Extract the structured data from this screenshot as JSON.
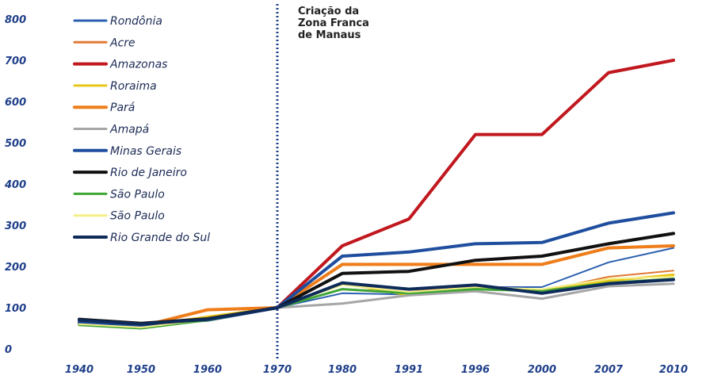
{
  "chart_data": {
    "type": "line",
    "x": [
      "1940",
      "1950",
      "1960",
      "1970",
      "1980",
      "1991",
      "1996",
      "2000",
      "2007",
      "2010"
    ],
    "ylim": [
      0,
      800
    ],
    "yticks": [
      "0",
      "100",
      "200",
      "300",
      "400",
      "500",
      "600",
      "700",
      "800"
    ],
    "grid": false,
    "legend_position": "top-left",
    "annotation": {
      "lines": [
        "Criação da",
        "Zona Franca",
        "de Manaus"
      ],
      "x": "1970"
    },
    "series": [
      {
        "name": "Rondônia",
        "color": "#2b5fb0",
        "width": 2,
        "values": [
          60,
          55,
          72,
          100,
          135,
          132,
          150,
          150,
          210,
          245
        ]
      },
      {
        "name": "Acre",
        "color": "#e07a35",
        "width": 2,
        "values": [
          58,
          50,
          75,
          100,
          145,
          138,
          155,
          140,
          175,
          190
        ]
      },
      {
        "name": "Amazonas",
        "color": "#c0181e",
        "width": 4,
        "values": [
          62,
          58,
          75,
          100,
          250,
          315,
          520,
          520,
          670,
          700
        ]
      },
      {
        "name": "Roraima",
        "color": "#e8c619",
        "width": 3,
        "values": [
          60,
          55,
          78,
          100,
          160,
          130,
          150,
          140,
          165,
          180
        ]
      },
      {
        "name": "Pará",
        "color": "#ee7d1a",
        "width": 4,
        "values": [
          62,
          55,
          95,
          100,
          205,
          205,
          205,
          205,
          245,
          250
        ]
      },
      {
        "name": "Amapá",
        "color": "#a6a6a6",
        "width": 3,
        "values": [
          60,
          55,
          73,
          100,
          110,
          130,
          140,
          122,
          152,
          158
        ]
      },
      {
        "name": "Minas Gerais",
        "color": "#1f4e9e",
        "width": 4,
        "values": [
          65,
          58,
          70,
          100,
          225,
          235,
          255,
          258,
          305,
          330
        ]
      },
      {
        "name": "Rio de Janeiro",
        "color": "#111111",
        "width": 4,
        "values": [
          72,
          62,
          73,
          100,
          183,
          188,
          215,
          225,
          255,
          280
        ]
      },
      {
        "name": "São Paulo",
        "color": "#3fa535",
        "width": 3,
        "values": [
          58,
          50,
          70,
          100,
          145,
          135,
          145,
          140,
          160,
          170
        ]
      },
      {
        "name": "São Paulo",
        "color": "#f4ef88",
        "width": 2,
        "values": [
          60,
          52,
          72,
          100,
          155,
          138,
          150,
          145,
          170,
          175
        ]
      },
      {
        "name": "Rio Grande do Sul",
        "color": "#0f2b5a",
        "width": 4,
        "values": [
          70,
          60,
          72,
          100,
          160,
          145,
          155,
          135,
          158,
          168
        ]
      }
    ]
  }
}
